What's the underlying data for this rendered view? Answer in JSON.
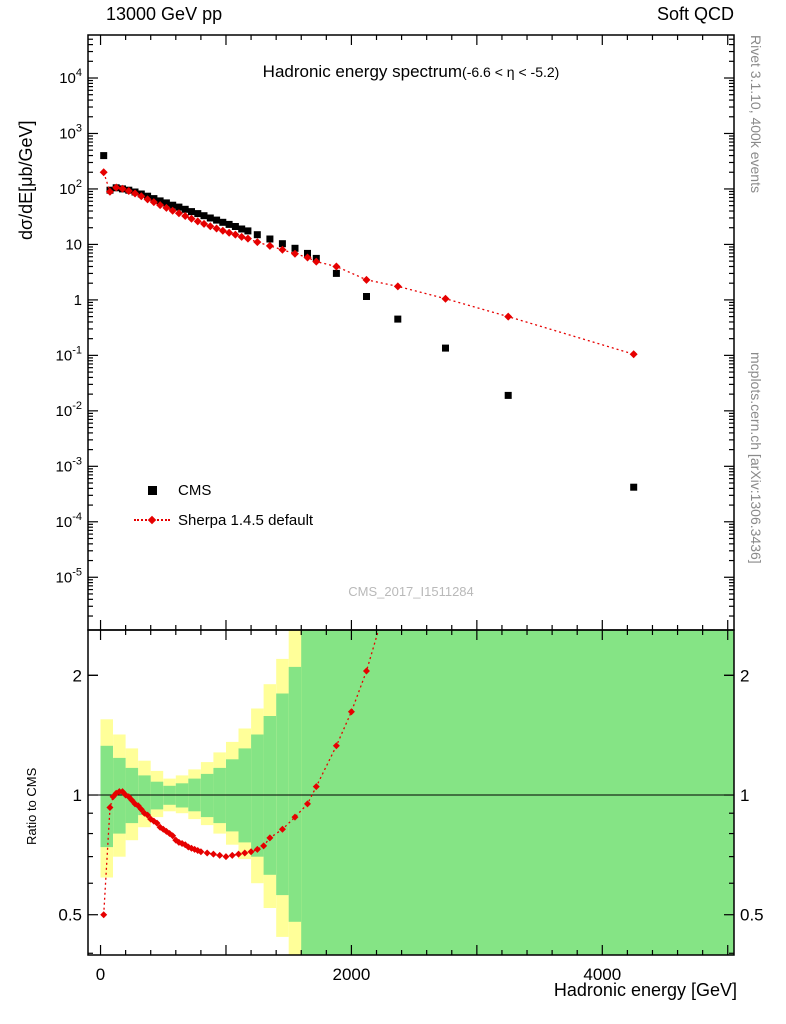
{
  "header": {
    "left": "13000 GeV pp",
    "right": "Soft QCD"
  },
  "sidebar_right": {
    "top": "Rivet 3.1.10,  400k events",
    "bottom": "mcplots.cern.ch [arXiv:1306.3436]"
  },
  "main_panel": {
    "title": "Hadronic energy spectrum",
    "title_suffix": "(-6.6 < η < -5.2)",
    "ylabel": "dσ/dE[μb/GeV]",
    "watermark": "CMS_2017_I1511284",
    "legend": [
      {
        "label": "CMS",
        "marker": "black-filled-square"
      },
      {
        "label": "Sherpa 1.4.5 default",
        "marker": "red-diamond-dotted-line"
      }
    ]
  },
  "ratio_panel": {
    "ylabel": "Ratio to CMS"
  },
  "xaxis": {
    "label": "Hadronic energy [GeV]"
  },
  "colors": {
    "cms": "#000000",
    "sherpa": "#e60000",
    "band_outer": "#ffff99",
    "band_inner": "#85e485",
    "side_text": "#8a8a8a",
    "watermark": "#b9b9b9"
  },
  "chart_data": [
    {
      "type": "scatter",
      "title": "Hadronic energy spectrum (-6.6 < η < -5.2)",
      "xlabel": "Hadronic energy [GeV]",
      "ylabel": "dσ/dE[μb/GeV]",
      "xlim": [
        -100,
        5050
      ],
      "ylog": true,
      "ylim": [
        1.12e-06,
        59600
      ],
      "grid": false,
      "legend_position": "left-middle",
      "xticks": [
        {
          "v": 0,
          "label": "0"
        },
        {
          "v": 2000,
          "label": "2000"
        },
        {
          "v": 4000,
          "label": "4000"
        }
      ],
      "yticks": [
        {
          "v": 10000,
          "base": "10",
          "exp": "4"
        },
        {
          "v": 1000,
          "base": "10",
          "exp": "3"
        },
        {
          "v": 100,
          "base": "10",
          "exp": "2"
        },
        {
          "v": 10,
          "base": "10",
          "exp": ""
        },
        {
          "v": 1,
          "base": "1",
          "exp": ""
        },
        {
          "v": 0.1,
          "base": "10",
          "exp": "-1"
        },
        {
          "v": 0.01,
          "base": "10",
          "exp": "-2"
        },
        {
          "v": 0.001,
          "base": "10",
          "exp": "-3"
        },
        {
          "v": 0.0001,
          "base": "10",
          "exp": "-4"
        },
        {
          "v": 1e-05,
          "base": "10",
          "exp": "-5"
        }
      ],
      "series": [
        {
          "name": "CMS",
          "marker": "filled-square",
          "color": "#000000",
          "points": [
            [
              25,
              400
            ],
            [
              75,
              95
            ],
            [
              125,
              105
            ],
            [
              175,
              100
            ],
            [
              225,
              95
            ],
            [
              275,
              88
            ],
            [
              325,
              81
            ],
            [
              375,
              74
            ],
            [
              425,
              67
            ],
            [
              475,
              61
            ],
            [
              525,
              56
            ],
            [
              575,
              51
            ],
            [
              625,
              47
            ],
            [
              675,
              43
            ],
            [
              725,
              39
            ],
            [
              775,
              36
            ],
            [
              825,
              33
            ],
            [
              875,
              30
            ],
            [
              925,
              27.5
            ],
            [
              975,
              25
            ],
            [
              1025,
              23
            ],
            [
              1075,
              21
            ],
            [
              1125,
              19
            ],
            [
              1175,
              17.5
            ],
            [
              1250,
              15
            ],
            [
              1350,
              12.5
            ],
            [
              1450,
              10.3
            ],
            [
              1550,
              8.5
            ],
            [
              1650,
              6.9
            ],
            [
              1720,
              5.6
            ],
            [
              1880,
              3.0
            ],
            [
              2120,
              1.15
            ],
            [
              2370,
              0.45
            ],
            [
              2750,
              0.135
            ],
            [
              3250,
              0.019
            ],
            [
              4250,
              0.00042
            ]
          ]
        },
        {
          "name": "Sherpa 1.4.5 default",
          "marker": "filled-diamond",
          "color": "#e60000",
          "line": "dotted",
          "points": [
            [
              25,
              200
            ],
            [
              75,
              89
            ],
            [
              125,
              106
            ],
            [
              175,
              101
            ],
            [
              225,
              92
            ],
            [
              275,
              83
            ],
            [
              325,
              74
            ],
            [
              375,
              65
            ],
            [
              425,
              58
            ],
            [
              475,
              51
            ],
            [
              525,
              45.5
            ],
            [
              575,
              40.5
            ],
            [
              625,
              36.5
            ],
            [
              675,
              32.5
            ],
            [
              725,
              29
            ],
            [
              775,
              26
            ],
            [
              825,
              23.5
            ],
            [
              875,
              21.3
            ],
            [
              925,
              19.4
            ],
            [
              975,
              17.6
            ],
            [
              1025,
              16.2
            ],
            [
              1075,
              15
            ],
            [
              1125,
              13.7
            ],
            [
              1175,
              12.7
            ],
            [
              1250,
              11
            ],
            [
              1350,
              9.4
            ],
            [
              1450,
              8
            ],
            [
              1550,
              6.8
            ],
            [
              1650,
              5.8
            ],
            [
              1720,
              4.9
            ],
            [
              1880,
              4.0
            ],
            [
              2120,
              2.3
            ],
            [
              2370,
              1.75
            ],
            [
              2750,
              1.05
            ],
            [
              3250,
              0.5
            ],
            [
              4250,
              0.105
            ]
          ]
        }
      ]
    },
    {
      "type": "line",
      "title": "Ratio to CMS",
      "ylabel": "Ratio to CMS",
      "xlim": [
        -100,
        5050
      ],
      "ylog": true,
      "ylim": [
        0.396,
        2.6
      ],
      "reference_line": 1,
      "yticks": [
        {
          "v": 0.5,
          "label": "0.5"
        },
        {
          "v": 1,
          "label": "1"
        },
        {
          "v": 2,
          "label": "2"
        }
      ],
      "bands": {
        "outer": {
          "color": "#ffff99",
          "bins": [
            [
              0,
              100,
              0.62,
              1.55
            ],
            [
              100,
              200,
              0.7,
              1.42
            ],
            [
              200,
              300,
              0.77,
              1.31
            ],
            [
              300,
              400,
              0.83,
              1.22
            ],
            [
              400,
              500,
              0.88,
              1.15
            ],
            [
              500,
              600,
              0.91,
              1.1
            ],
            [
              600,
              700,
              0.9,
              1.12
            ],
            [
              700,
              800,
              0.87,
              1.16
            ],
            [
              800,
              900,
              0.84,
              1.21
            ],
            [
              900,
              1000,
              0.8,
              1.28
            ],
            [
              1000,
              1100,
              0.75,
              1.36
            ],
            [
              1100,
              1200,
              0.69,
              1.47
            ],
            [
              1200,
              1300,
              0.6,
              1.65
            ],
            [
              1300,
              1400,
              0.52,
              1.9
            ],
            [
              1400,
              1500,
              0.44,
              2.2
            ],
            [
              1500,
              5050,
              0.396,
              2.6
            ]
          ]
        },
        "inner": {
          "color": "#85e485",
          "bins": [
            [
              0,
              100,
              0.74,
              1.33
            ],
            [
              100,
              200,
              0.8,
              1.24
            ],
            [
              200,
              300,
              0.85,
              1.17
            ],
            [
              300,
              400,
              0.89,
              1.12
            ],
            [
              400,
              500,
              0.92,
              1.08
            ],
            [
              500,
              600,
              0.945,
              1.055
            ],
            [
              600,
              700,
              0.93,
              1.07
            ],
            [
              700,
              800,
              0.91,
              1.1
            ],
            [
              800,
              900,
              0.88,
              1.13
            ],
            [
              900,
              1000,
              0.85,
              1.17
            ],
            [
              1000,
              1100,
              0.81,
              1.23
            ],
            [
              1100,
              1200,
              0.76,
              1.31
            ],
            [
              1200,
              1300,
              0.7,
              1.42
            ],
            [
              1300,
              1400,
              0.63,
              1.58
            ],
            [
              1400,
              1500,
              0.56,
              1.8
            ],
            [
              1500,
              1600,
              0.48,
              2.1
            ],
            [
              1600,
              5050,
              0.396,
              2.6
            ]
          ]
        }
      },
      "series": [
        {
          "name": "Sherpa 1.4.5 default / CMS",
          "color": "#e60000",
          "line": "dotted",
          "marker": "filled-diamond",
          "points": [
            [
              25,
              0.5
            ],
            [
              75,
              0.93
            ],
            [
              100,
              0.99
            ],
            [
              125,
              1.01
            ],
            [
              150,
              1.02
            ],
            [
              175,
              1.02
            ],
            [
              200,
              1.0
            ],
            [
              225,
              0.99
            ],
            [
              250,
              0.97
            ],
            [
              275,
              0.95
            ],
            [
              300,
              0.94
            ],
            [
              325,
              0.92
            ],
            [
              350,
              0.9
            ],
            [
              375,
              0.89
            ],
            [
              400,
              0.87
            ],
            [
              425,
              0.86
            ],
            [
              450,
              0.85
            ],
            [
              475,
              0.83
            ],
            [
              500,
              0.82
            ],
            [
              525,
              0.81
            ],
            [
              550,
              0.8
            ],
            [
              575,
              0.79
            ],
            [
              600,
              0.77
            ],
            [
              625,
              0.76
            ],
            [
              650,
              0.755
            ],
            [
              675,
              0.75
            ],
            [
              700,
              0.74
            ],
            [
              725,
              0.735
            ],
            [
              750,
              0.73
            ],
            [
              775,
              0.725
            ],
            [
              800,
              0.72
            ],
            [
              850,
              0.715
            ],
            [
              900,
              0.71
            ],
            [
              950,
              0.705
            ],
            [
              1000,
              0.7
            ],
            [
              1050,
              0.705
            ],
            [
              1100,
              0.71
            ],
            [
              1150,
              0.715
            ],
            [
              1200,
              0.72
            ],
            [
              1250,
              0.73
            ],
            [
              1300,
              0.745
            ],
            [
              1350,
              0.78
            ],
            [
              1450,
              0.82
            ],
            [
              1550,
              0.88
            ],
            [
              1650,
              0.95
            ],
            [
              1720,
              1.05
            ],
            [
              1880,
              1.33
            ],
            [
              2000,
              1.62
            ],
            [
              2120,
              2.05
            ],
            [
              2300,
              3.2
            ]
          ]
        }
      ]
    }
  ]
}
